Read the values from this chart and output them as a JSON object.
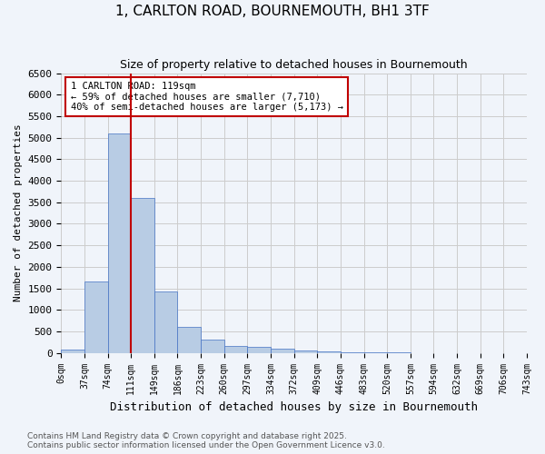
{
  "title": "1, CARLTON ROAD, BOURNEMOUTH, BH1 3TF",
  "subtitle": "Size of property relative to detached houses in Bournemouth",
  "xlabel": "Distribution of detached houses by size in Bournemouth",
  "ylabel": "Number of detached properties",
  "bar_values": [
    75,
    1650,
    5100,
    3600,
    1420,
    610,
    310,
    160,
    145,
    100,
    55,
    30,
    20,
    10,
    5,
    2,
    1,
    0,
    0,
    0
  ],
  "bin_labels": [
    "0sqm",
    "37sqm",
    "74sqm",
    "111sqm",
    "149sqm",
    "186sqm",
    "223sqm",
    "260sqm",
    "297sqm",
    "334sqm",
    "372sqm",
    "409sqm",
    "446sqm",
    "483sqm",
    "520sqm",
    "557sqm",
    "594sqm",
    "632sqm",
    "669sqm",
    "706sqm",
    "743sqm"
  ],
  "bar_color": "#b8cce4",
  "bar_edge_color": "#4472c4",
  "vline_x": 3,
  "vline_color": "#c00000",
  "annotation_text": "1 CARLTON ROAD: 119sqm\n← 59% of detached houses are smaller (7,710)\n40% of semi-detached houses are larger (5,173) →",
  "annotation_box_color": "#ffffff",
  "annotation_box_edge": "#c00000",
  "ylim": [
    0,
    6500
  ],
  "yticks": [
    0,
    500,
    1000,
    1500,
    2000,
    2500,
    3000,
    3500,
    4000,
    4500,
    5000,
    5500,
    6000,
    6500
  ],
  "footer_line1": "Contains HM Land Registry data © Crown copyright and database right 2025.",
  "footer_line2": "Contains public sector information licensed under the Open Government Licence v3.0.",
  "bg_color": "#f0f4fa"
}
